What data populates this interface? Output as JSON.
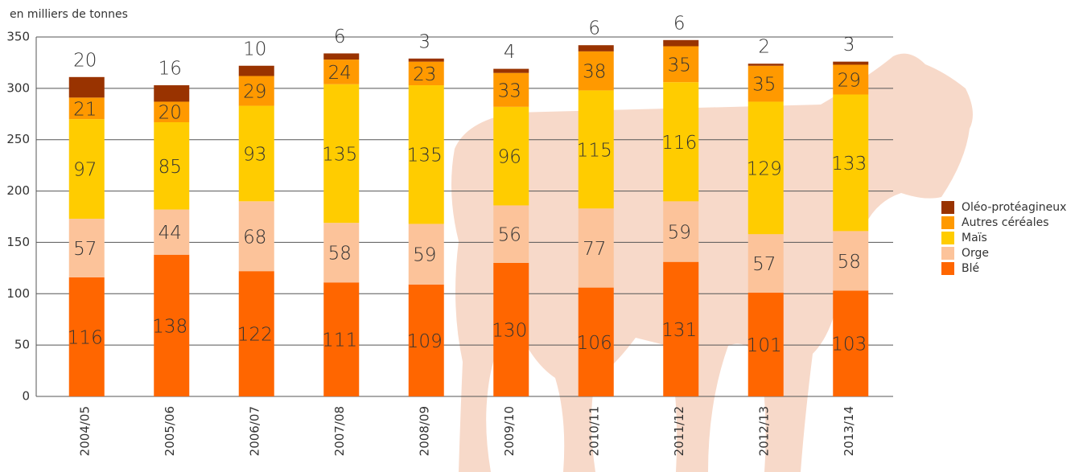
{
  "chart_data": {
    "type": "stacked_bar",
    "y_axis_label": "en milliers de tonnes",
    "categories": [
      "2004/05",
      "2005/06",
      "2006/07",
      "2007/08",
      "2008/09",
      "2009/10",
      "2010/11",
      "2011/12",
      "2012/13",
      "2013/14"
    ],
    "series": [
      {
        "name": "Blé",
        "color": "#ff6600",
        "values": [
          116,
          138,
          122,
          111,
          109,
          130,
          106,
          131,
          101,
          103
        ]
      },
      {
        "name": "Orge",
        "color": "#fcc39a",
        "values": [
          57,
          44,
          68,
          58,
          59,
          56,
          77,
          59,
          57,
          58
        ]
      },
      {
        "name": "Maïs",
        "color": "#ffcc00",
        "values": [
          97,
          85,
          93,
          135,
          135,
          96,
          115,
          116,
          129,
          133
        ]
      },
      {
        "name": "Autres céréales",
        "color": "#ff9900",
        "values": [
          21,
          20,
          29,
          24,
          23,
          33,
          38,
          35,
          35,
          29
        ]
      },
      {
        "name": "Oléo-protéagineux",
        "color": "#993300",
        "values": [
          20,
          16,
          10,
          6,
          3,
          4,
          6,
          6,
          2,
          3
        ]
      }
    ],
    "ylim": [
      0,
      350
    ],
    "yticks": [
      0,
      50,
      100,
      150,
      200,
      250,
      300,
      350
    ],
    "grid": true,
    "legend": "right"
  }
}
